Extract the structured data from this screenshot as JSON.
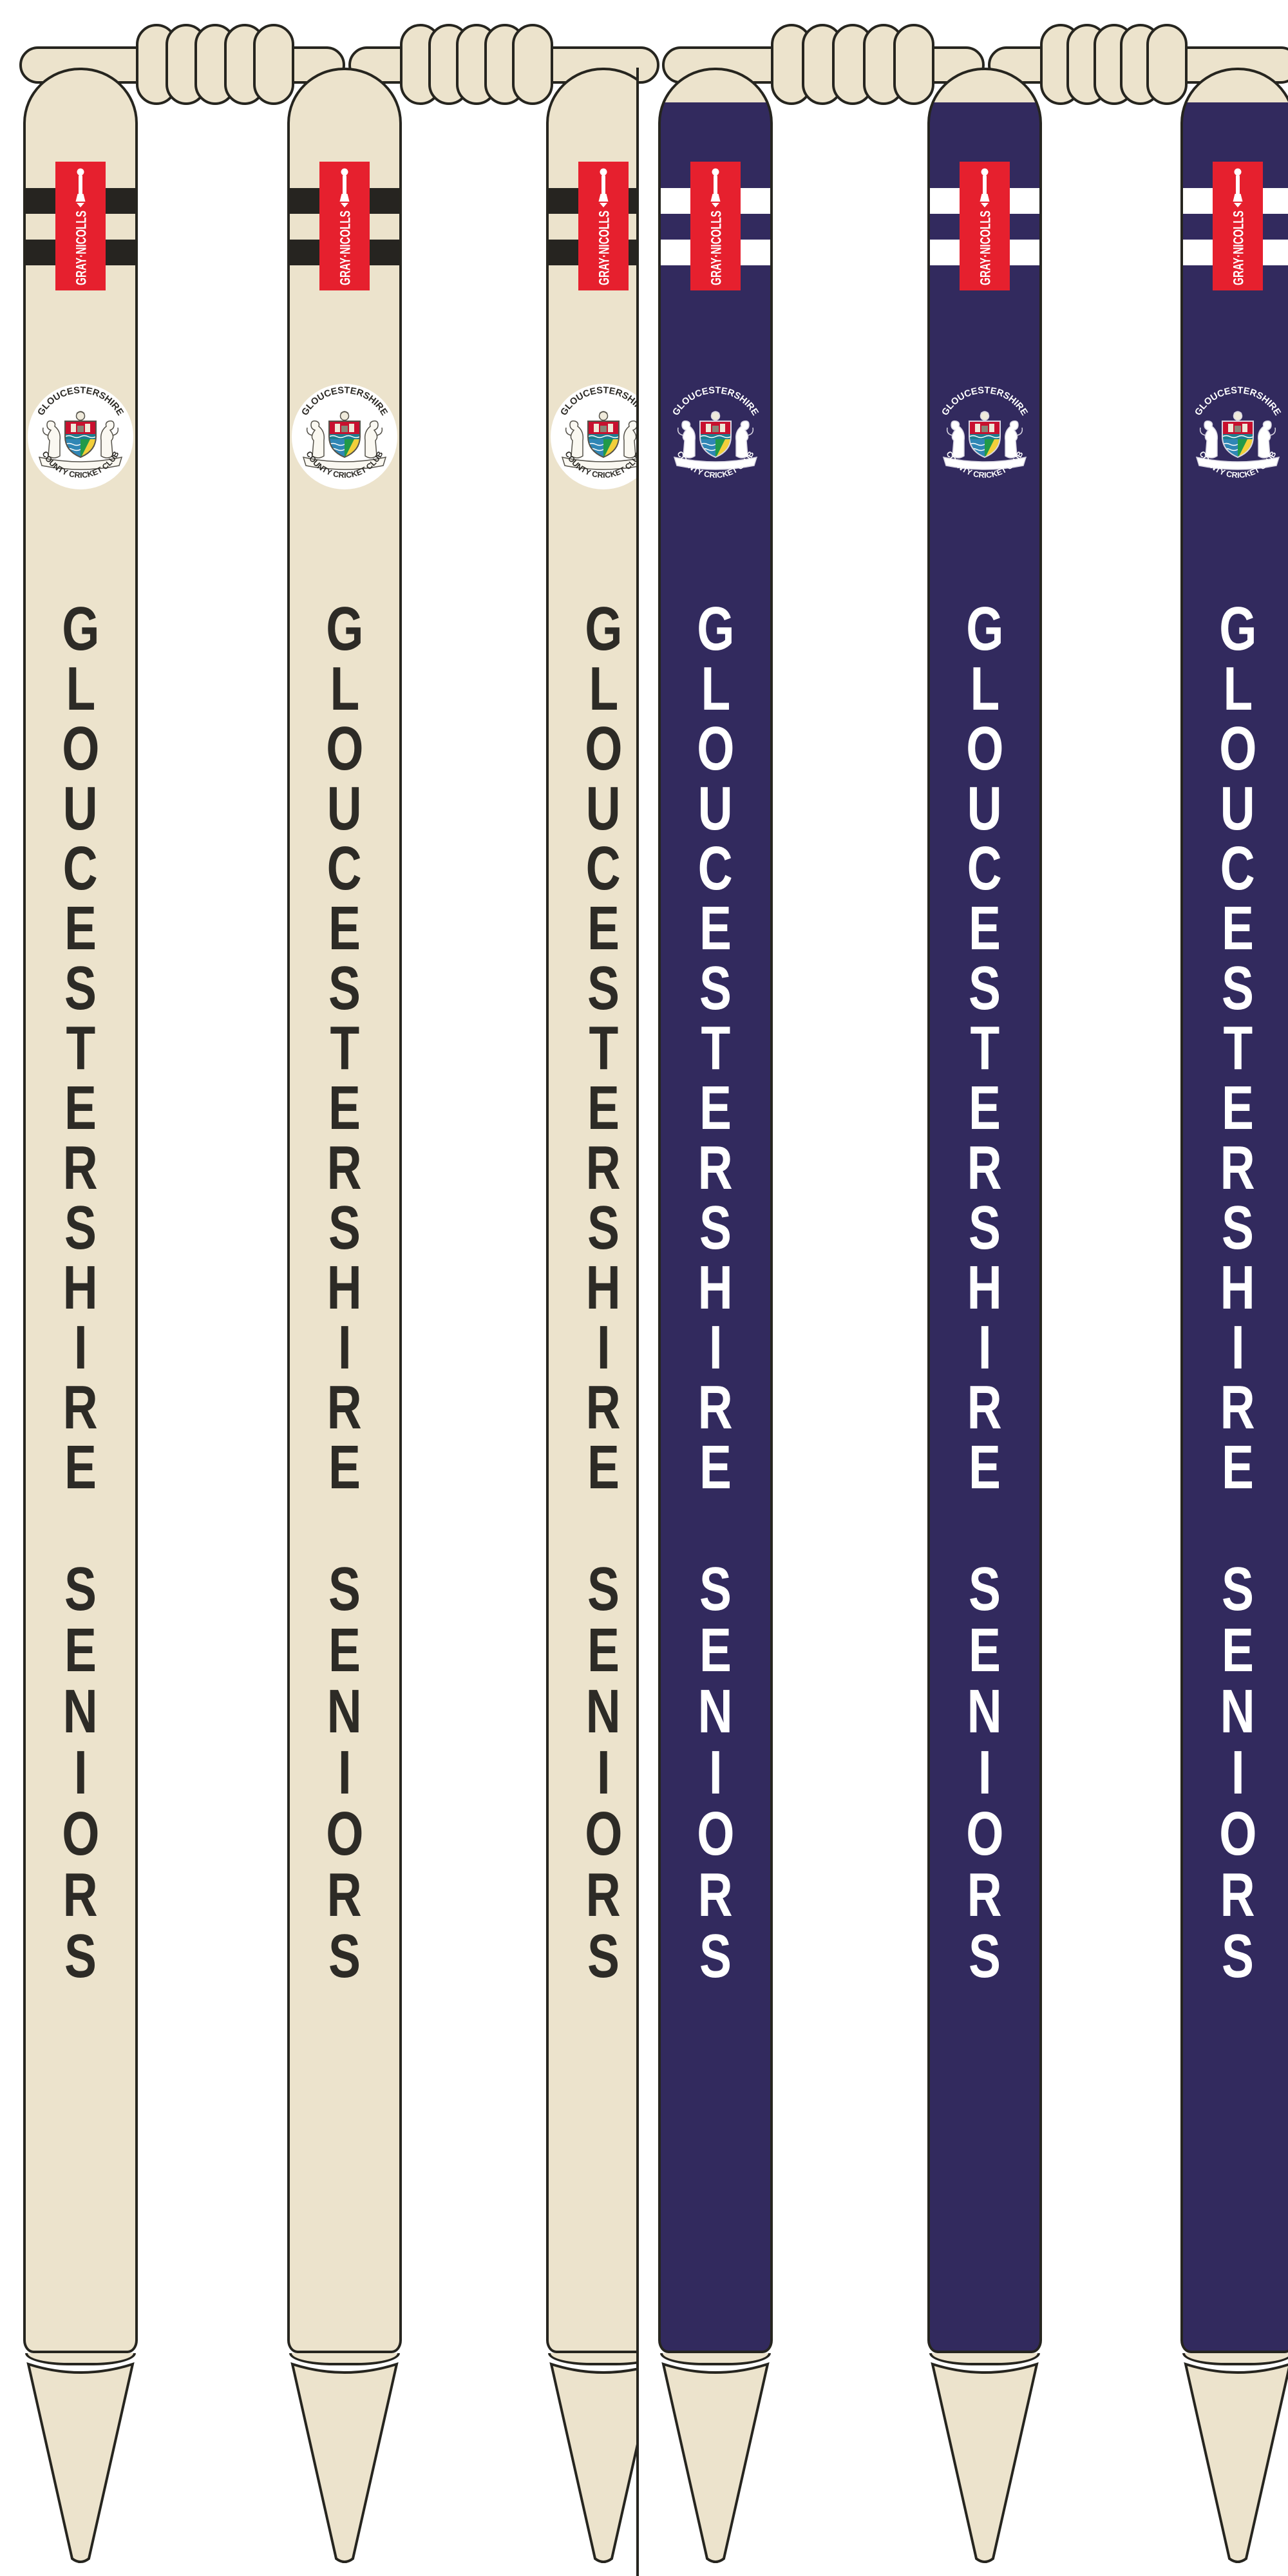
{
  "page": {
    "background": "#ffffff"
  },
  "colors": {
    "stump_natural": "#ece3cc",
    "stump_navy": "#322a5e",
    "outline": "#26251f",
    "brand_red": "#e6202e",
    "letter_dark": "#2d2b26",
    "letter_light": "#ffffff",
    "band_dark": "#262420",
    "band_light": "#ffffff",
    "crest_red": "#c8102e",
    "crest_teal": "#1d7e8f",
    "crest_yellow": "#f2cf3a",
    "crest_green": "#219a49",
    "crest_blue": "#2f86b5"
  },
  "branding": {
    "label": "GRAY·NICOLLS",
    "icon": "cricket-bat-icon"
  },
  "crest": {
    "top_text": "GLOUCESTERSHIRE",
    "bottom_text": "COUNTY CRICKET CLUB"
  },
  "stump_text": {
    "line1": "GLOUCESTERSHIRE",
    "line2": "SENIORS"
  },
  "stumps": [
    {
      "variant": "natural"
    },
    {
      "variant": "natural"
    },
    {
      "variant": "natural"
    },
    {
      "variant": "navy"
    },
    {
      "variant": "navy"
    },
    {
      "variant": "navy"
    }
  ],
  "bails": {
    "count": 4,
    "coil_groups": 4,
    "coils_per_group": 5
  }
}
